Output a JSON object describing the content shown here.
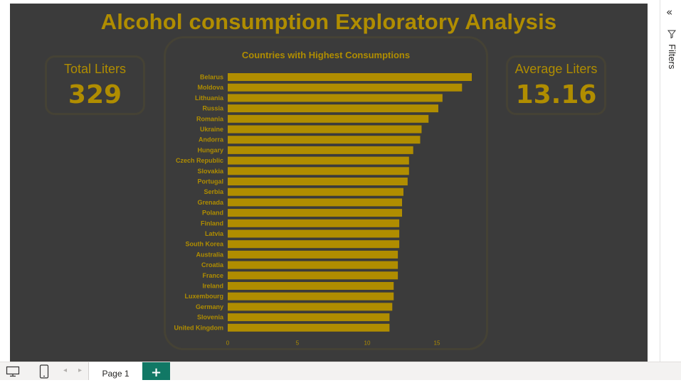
{
  "report": {
    "title": "Alcohol consumption Exploratory Analysis",
    "accent_color": "#b08d00",
    "background_color": "#3b3b3b"
  },
  "kpis": {
    "total": {
      "label": "Total Liters",
      "value": "329"
    },
    "average": {
      "label": "Average Liters",
      "value": "13.16"
    }
  },
  "chart_data": {
    "type": "bar",
    "orientation": "horizontal",
    "title": "Countries with Highest Consumptions",
    "categories": [
      "Belarus",
      "Moldova",
      "Lithuania",
      "Russia",
      "Romania",
      "Ukraine",
      "Andorra",
      "Hungary",
      "Czech Republic",
      "Slovakia",
      "Portugal",
      "Serbia",
      "Grenada",
      "Poland",
      "Finland",
      "Latvia",
      "South Korea",
      "Australia",
      "Croatia",
      "France",
      "Ireland",
      "Luxembourg",
      "Germany",
      "Slovenia",
      "United Kingdom"
    ],
    "values": [
      17.5,
      16.8,
      15.4,
      15.1,
      14.4,
      13.9,
      13.8,
      13.3,
      13.0,
      13.0,
      12.9,
      12.6,
      12.5,
      12.5,
      12.3,
      12.3,
      12.3,
      12.2,
      12.2,
      12.2,
      11.9,
      11.9,
      11.8,
      11.6,
      11.6
    ],
    "x_ticks": [
      0,
      5,
      10,
      15
    ],
    "xlim": [
      0,
      20
    ],
    "bar_color": "#b08d00",
    "xlabel": "",
    "ylabel": "",
    "grid": false
  },
  "filters_pane": {
    "label": "Filters",
    "collapse_icon": "double-chevron-left-icon",
    "filter_icon": "funnel-icon"
  },
  "footer": {
    "page_tab": "Page 1",
    "add_page": "+",
    "desktop_icon": "desktop-view-icon",
    "mobile_icon": "mobile-view-icon"
  }
}
